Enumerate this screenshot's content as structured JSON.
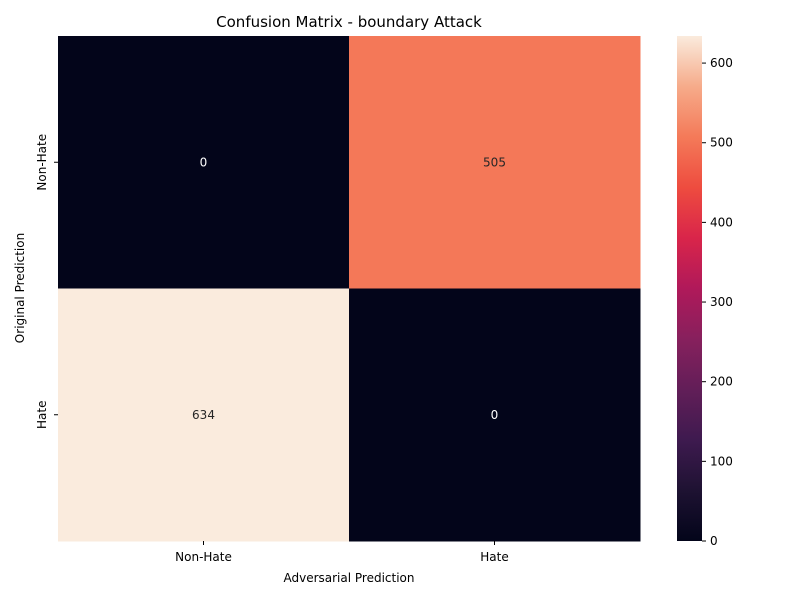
{
  "chart_data": {
    "type": "heatmap",
    "title": "Confusion Matrix - boundary Attack",
    "xlabel": "Adversarial Prediction",
    "ylabel": "Original Prediction",
    "x_categories": [
      "Non-Hate",
      "Hate"
    ],
    "y_categories": [
      "Non-Hate",
      "Hate"
    ],
    "values": [
      [
        0,
        505
      ],
      [
        634,
        0
      ]
    ],
    "colorbar": {
      "min": 0,
      "max": 634,
      "ticks": [
        0,
        100,
        200,
        300,
        400,
        500,
        600
      ],
      "colormap": "rocket"
    },
    "annot_light_color": "#ffffff",
    "annot_dark_color": "#262626"
  }
}
